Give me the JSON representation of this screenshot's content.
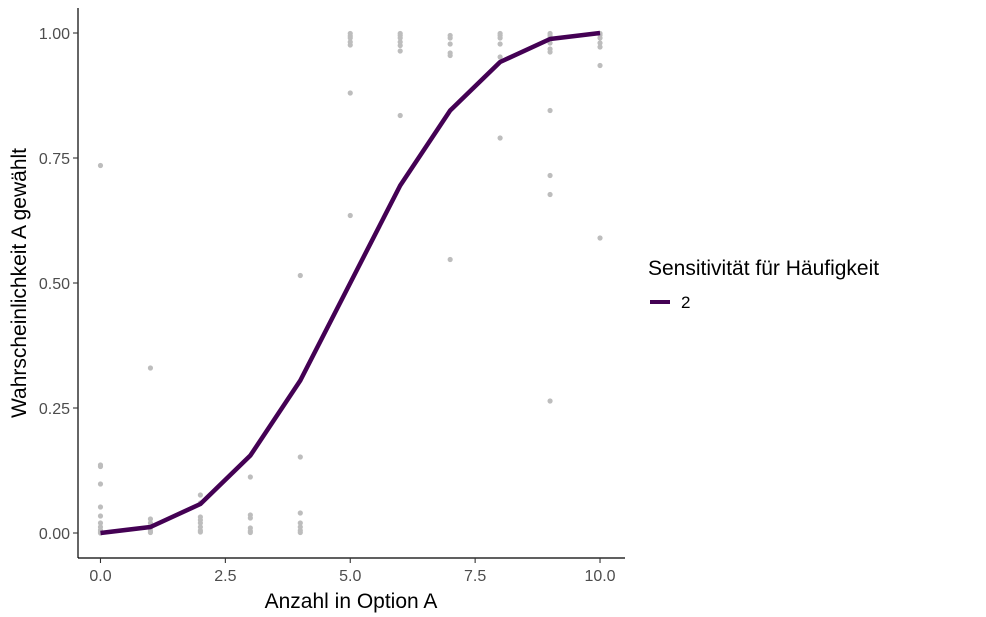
{
  "chart_data": {
    "type": "line",
    "xlabel": "Anzahl in Option A",
    "ylabel": "Wahrscheinlichkeit A gewählt",
    "xlim": [
      -0.45,
      10.5
    ],
    "ylim": [
      -0.05,
      1.05
    ],
    "x_ticks": [
      0.0,
      2.5,
      5.0,
      7.5,
      10.0
    ],
    "x_tick_labels": [
      "0.0",
      "2.5",
      "5.0",
      "7.5",
      "10.0"
    ],
    "y_ticks": [
      0.0,
      0.25,
      0.5,
      0.75,
      1.0
    ],
    "y_tick_labels": [
      "0.00",
      "0.25",
      "0.50",
      "0.75",
      "1.00"
    ],
    "grid": false,
    "legend": {
      "title": "Sensitivität für Häufigkeit",
      "placement": "right"
    },
    "series": [
      {
        "name": "2",
        "color": "#440154",
        "x": [
          0,
          1,
          2,
          3,
          4,
          5,
          6,
          7,
          8,
          9,
          10
        ],
        "y": [
          0.0,
          0.012,
          0.058,
          0.155,
          0.305,
          0.5,
          0.695,
          0.845,
          0.942,
          0.988,
          1.0
        ]
      }
    ],
    "scatter": {
      "color": "#bdbdbd",
      "points": [
        [
          0,
          0.735
        ],
        [
          0,
          0.136
        ],
        [
          0,
          0.133
        ],
        [
          0,
          0.098
        ],
        [
          0,
          0.052
        ],
        [
          0,
          0.034
        ],
        [
          0,
          0.02
        ],
        [
          0,
          0.012
        ],
        [
          0,
          0.006
        ],
        [
          0,
          0.002
        ],
        [
          0,
          0.0
        ],
        [
          1,
          0.33
        ],
        [
          1,
          0.028
        ],
        [
          1,
          0.02
        ],
        [
          1,
          0.01
        ],
        [
          1,
          0.004
        ],
        [
          1,
          0.001
        ],
        [
          2,
          0.076
        ],
        [
          2,
          0.06
        ],
        [
          2,
          0.032
        ],
        [
          2,
          0.026
        ],
        [
          2,
          0.02
        ],
        [
          2,
          0.012
        ],
        [
          2,
          0.005
        ],
        [
          2,
          0.002
        ],
        [
          3,
          0.112
        ],
        [
          3,
          0.036
        ],
        [
          3,
          0.03
        ],
        [
          3,
          0.01
        ],
        [
          3,
          0.004
        ],
        [
          3,
          0.001
        ],
        [
          4,
          0.515
        ],
        [
          4,
          0.152
        ],
        [
          4,
          0.04
        ],
        [
          4,
          0.02
        ],
        [
          4,
          0.012
        ],
        [
          4,
          0.005
        ],
        [
          4,
          0.001
        ],
        [
          5,
          0.999
        ],
        [
          5,
          0.994
        ],
        [
          5,
          0.99
        ],
        [
          5,
          0.982
        ],
        [
          5,
          0.976
        ],
        [
          5,
          0.88
        ],
        [
          5,
          0.635
        ],
        [
          6,
          0.999
        ],
        [
          6,
          0.995
        ],
        [
          6,
          0.99
        ],
        [
          6,
          0.982
        ],
        [
          6,
          0.975
        ],
        [
          6,
          0.964
        ],
        [
          6,
          0.835
        ],
        [
          7,
          0.995
        ],
        [
          7,
          0.99
        ],
        [
          7,
          0.978
        ],
        [
          7,
          0.96
        ],
        [
          7,
          0.955
        ],
        [
          7,
          0.547
        ],
        [
          8,
          0.999
        ],
        [
          8,
          0.995
        ],
        [
          8,
          0.99
        ],
        [
          8,
          0.978
        ],
        [
          8,
          0.952
        ],
        [
          8,
          0.79
        ],
        [
          9,
          0.999
        ],
        [
          9,
          0.995
        ],
        [
          9,
          0.99
        ],
        [
          9,
          0.98
        ],
        [
          9,
          0.968
        ],
        [
          9,
          0.962
        ],
        [
          9,
          0.845
        ],
        [
          9,
          0.715
        ],
        [
          9,
          0.677
        ],
        [
          9,
          0.264
        ],
        [
          10,
          0.999
        ],
        [
          10,
          0.996
        ],
        [
          10,
          0.99
        ],
        [
          10,
          0.98
        ],
        [
          10,
          0.972
        ],
        [
          10,
          0.935
        ],
        [
          10,
          0.59
        ]
      ]
    }
  }
}
